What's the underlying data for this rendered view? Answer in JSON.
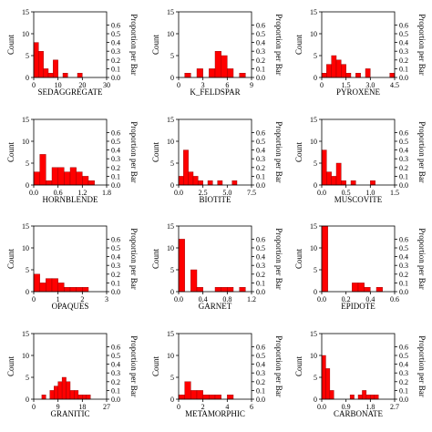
{
  "colors": {
    "bar": "#ff0000",
    "bar_edge": "#8b0000",
    "axis": "#000000"
  },
  "chart_data": [
    {
      "type": "bar",
      "title": "SEDAGGREGATE",
      "xlabel": "SEDAGGREGATE",
      "ylabel": "Count",
      "ylabel_right": "Proportion per Bar",
      "xlim": [
        0,
        30
      ],
      "xticks": [
        "0",
        "10",
        "20",
        "30"
      ],
      "ylim": [
        0,
        15
      ],
      "yticks": [
        "0",
        "5",
        "10",
        "15"
      ],
      "y2ticks": [
        "0.0",
        "0.1",
        "0.2",
        "0.3",
        "0.4",
        "0.5",
        "0.6"
      ],
      "bin_width": 2,
      "values": [
        8,
        6,
        2,
        1,
        4,
        0,
        1,
        0,
        0,
        1,
        0,
        0,
        0,
        0,
        0
      ],
      "grid": false
    },
    {
      "type": "bar",
      "title": "K_FELDSPAR",
      "xlabel": "K_FELDSPAR",
      "ylabel": "Count",
      "ylabel_right": "Proportion per Bar",
      "xlim": [
        0,
        9
      ],
      "xticks": [
        "0",
        "3",
        "6",
        "9"
      ],
      "ylim": [
        0,
        15
      ],
      "yticks": [
        "0",
        "5",
        "10",
        "15"
      ],
      "y2ticks": [
        "0.0",
        "0.1",
        "0.2",
        "0.3",
        "0.4",
        "0.5",
        "0.6"
      ],
      "bin_width": 0.75,
      "values": [
        0,
        1,
        0,
        2,
        0,
        2,
        6,
        5,
        2,
        0,
        1,
        0
      ],
      "grid": false
    },
    {
      "type": "bar",
      "title": "PYROXENE",
      "xlabel": "PYROXENE",
      "ylabel": "Count",
      "ylabel_right": "Proportion per Bar",
      "xlim": [
        0,
        4.5
      ],
      "xticks": [
        "0",
        "1.5",
        "3.0",
        "4.5"
      ],
      "ylim": [
        0,
        15
      ],
      "yticks": [
        "0",
        "5",
        "10",
        "15"
      ],
      "y2ticks": [
        "0.0",
        "0.1",
        "0.2",
        "0.3",
        "0.4",
        "0.5",
        "0.6"
      ],
      "bin_width": 0.3,
      "values": [
        1,
        3,
        5,
        4,
        3,
        1,
        0,
        1,
        0,
        2,
        0,
        0,
        0,
        0,
        1
      ],
      "grid": false
    },
    {
      "type": "bar",
      "title": "HORNBLENDE",
      "xlabel": "HORNBLENDE",
      "ylabel": "Count",
      "ylabel_right": "Proportion per Bar",
      "xlim": [
        0,
        1.8
      ],
      "xticks": [
        "0.0",
        "0.6",
        "1.2",
        "1.8"
      ],
      "ylim": [
        0,
        15
      ],
      "yticks": [
        "0",
        "5",
        "10",
        "15"
      ],
      "y2ticks": [
        "0.0",
        "0.1",
        "0.2",
        "0.3",
        "0.4",
        "0.5",
        "0.6"
      ],
      "bin_width": 0.15,
      "values": [
        3,
        7,
        1,
        4,
        4,
        3,
        4,
        3,
        2,
        1,
        0,
        0
      ],
      "grid": false
    },
    {
      "type": "bar",
      "title": "BIOTITE",
      "xlabel": "BIOTITE",
      "ylabel": "Count",
      "ylabel_right": "Proportion per Bar",
      "xlim": [
        0,
        7.5
      ],
      "xticks": [
        "0.0",
        "2.5",
        "5.0",
        "7.5"
      ],
      "ylim": [
        0,
        15
      ],
      "yticks": [
        "0",
        "5",
        "10",
        "15"
      ],
      "y2ticks": [
        "0.0",
        "0.1",
        "0.2",
        "0.3",
        "0.4",
        "0.5",
        "0.6"
      ],
      "bin_width": 0.5,
      "values": [
        2,
        8,
        3,
        2,
        1,
        0,
        1,
        0,
        1,
        0,
        0,
        1,
        0,
        0,
        0
      ],
      "grid": false
    },
    {
      "type": "bar",
      "title": "MUSCOVITE",
      "xlabel": "MUSCOVITE",
      "ylabel": "Count",
      "ylabel_right": "Proportion per Bar",
      "xlim": [
        0,
        1.5
      ],
      "xticks": [
        "0.0",
        "0.5",
        "1.0",
        "1.5"
      ],
      "ylim": [
        0,
        15
      ],
      "yticks": [
        "0",
        "5",
        "10",
        "15"
      ],
      "y2ticks": [
        "0.0",
        "0.1",
        "0.2",
        "0.3",
        "0.4",
        "0.5",
        "0.6"
      ],
      "bin_width": 0.1,
      "values": [
        8,
        3,
        2,
        5,
        1,
        0,
        1,
        0,
        0,
        0,
        1,
        0,
        0,
        0,
        0
      ],
      "grid": false
    },
    {
      "type": "bar",
      "title": "OPAQUES",
      "xlabel": "OPAQUES",
      "ylabel": "Count",
      "ylabel_right": "Proportion per Bar",
      "xlim": [
        0,
        3
      ],
      "xticks": [
        "0",
        "1",
        "2",
        "3"
      ],
      "ylim": [
        0,
        15
      ],
      "yticks": [
        "0",
        "5",
        "10",
        "15"
      ],
      "y2ticks": [
        "0.0",
        "0.1",
        "0.2",
        "0.3",
        "0.4",
        "0.5",
        "0.6"
      ],
      "bin_width": 0.25,
      "values": [
        4,
        2,
        3,
        3,
        2,
        1,
        1,
        1,
        1,
        0,
        0,
        0
      ],
      "grid": false
    },
    {
      "type": "bar",
      "title": "GARNET",
      "xlabel": "GARNET",
      "ylabel": "Count",
      "ylabel_right": "Proportion per Bar",
      "xlim": [
        0,
        1.2
      ],
      "xticks": [
        "0.0",
        "0.4",
        "0.8",
        "1.2"
      ],
      "ylim": [
        0,
        15
      ],
      "yticks": [
        "0",
        "5",
        "10",
        "15"
      ],
      "y2ticks": [
        "0.0",
        "0.1",
        "0.2",
        "0.3",
        "0.4",
        "0.5",
        "0.6"
      ],
      "bin_width": 0.1,
      "values": [
        12,
        0,
        5,
        1,
        0,
        0,
        1,
        1,
        1,
        0,
        1,
        0
      ],
      "grid": false
    },
    {
      "type": "bar",
      "title": "EPIDOTE",
      "xlabel": "EPIDOTE",
      "ylabel": "Count",
      "ylabel_right": "Proportion per Bar",
      "xlim": [
        0,
        0.6
      ],
      "xticks": [
        "0.0",
        "0.2",
        "0.4",
        "0.6"
      ],
      "ylim": [
        0,
        15
      ],
      "yticks": [
        "0",
        "5",
        "10",
        "15"
      ],
      "y2ticks": [
        "0.0",
        "0.1",
        "0.2",
        "0.3",
        "0.4",
        "0.5",
        "0.6"
      ],
      "bin_width": 0.05,
      "values": [
        15,
        0,
        0,
        0,
        0,
        2,
        2,
        1,
        0,
        1,
        0,
        0
      ],
      "grid": false
    },
    {
      "type": "bar",
      "title": "GRANITIC",
      "xlabel": "GRANITIC",
      "ylabel": "Count",
      "ylabel_right": "Proportion per Bar",
      "xlim": [
        0,
        27
      ],
      "xticks": [
        "0",
        "9",
        "18",
        "27"
      ],
      "ylim": [
        0,
        15
      ],
      "yticks": [
        "0",
        "5",
        "10",
        "15"
      ],
      "y2ticks": [
        "0.0",
        "0.1",
        "0.2",
        "0.3",
        "0.4",
        "0.5",
        "0.6"
      ],
      "bin_width": 1.5,
      "values": [
        0,
        0,
        1,
        0,
        2,
        3,
        4,
        5,
        4,
        2,
        2,
        1,
        1,
        1,
        0,
        0,
        0,
        0
      ],
      "grid": false
    },
    {
      "type": "bar",
      "title": "METAMORPHIC",
      "xlabel": "METAMORPHIC",
      "ylabel": "Count",
      "ylabel_right": "Proportion per Bar",
      "xlim": [
        0,
        6
      ],
      "xticks": [
        "0",
        "2",
        "4",
        "6"
      ],
      "ylim": [
        0,
        15
      ],
      "yticks": [
        "0",
        "5",
        "10",
        "15"
      ],
      "y2ticks": [
        "0.0",
        "0.1",
        "0.2",
        "0.3",
        "0.4",
        "0.5",
        "0.6"
      ],
      "bin_width": 0.5,
      "values": [
        1,
        4,
        2,
        2,
        1,
        1,
        1,
        0,
        1,
        0,
        0,
        0
      ],
      "grid": false
    },
    {
      "type": "bar",
      "title": "CARBONATE",
      "xlabel": "CARBONATE",
      "ylabel": "Count",
      "ylabel_right": "Proportion per Bar",
      "xlim": [
        0,
        2.7
      ],
      "xticks": [
        "0.0",
        "0.9",
        "1.8",
        "2.7"
      ],
      "ylim": [
        0,
        15
      ],
      "yticks": [
        "0",
        "5",
        "10",
        "15"
      ],
      "y2ticks": [
        "0.0",
        "0.1",
        "0.2",
        "0.3",
        "0.4",
        "0.5",
        "0.6"
      ],
      "bin_width": 0.15,
      "values": [
        10,
        7,
        2,
        0,
        0,
        0,
        0,
        1,
        0,
        1,
        2,
        1,
        1,
        1,
        0,
        0,
        0,
        0
      ],
      "grid": false
    }
  ]
}
